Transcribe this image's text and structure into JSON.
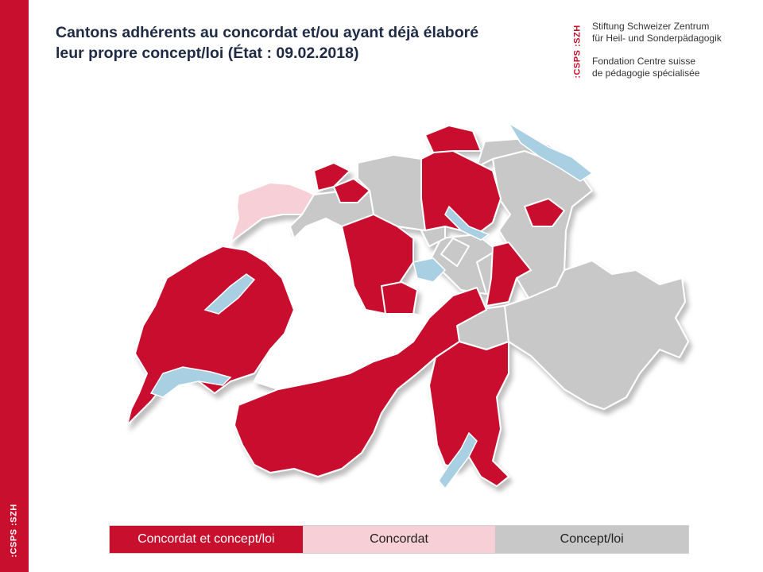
{
  "title": {
    "line1": "Cantons adhérents au concordat et/ou ayant déjà élaboré",
    "line2": "leur propre concept/loi (État : 09.02.2018)"
  },
  "logo": {
    "text": ":CSPS :SZH",
    "de_line1": "Stiftung Schweizer Zentrum",
    "de_line2": "für Heil- und Sonderpädagogik",
    "fr_line1": "Fondation Centre suisse",
    "fr_line2": "de pédagogie spécialisée"
  },
  "legend": [
    {
      "label": "Concordat et concept/loi",
      "color": "#c8102e"
    },
    {
      "label": "Concordat",
      "color": "#f7cfd6"
    },
    {
      "label": "Concept/loi",
      "color": "#c8c8c8"
    }
  ],
  "colors": {
    "concordat_concept": "#c8102e",
    "concordat": "#f7cfd6",
    "concept": "#c8c8c8",
    "none": "#ffffff",
    "lake": "#a9cfe3",
    "band": "#c8102e"
  }
}
